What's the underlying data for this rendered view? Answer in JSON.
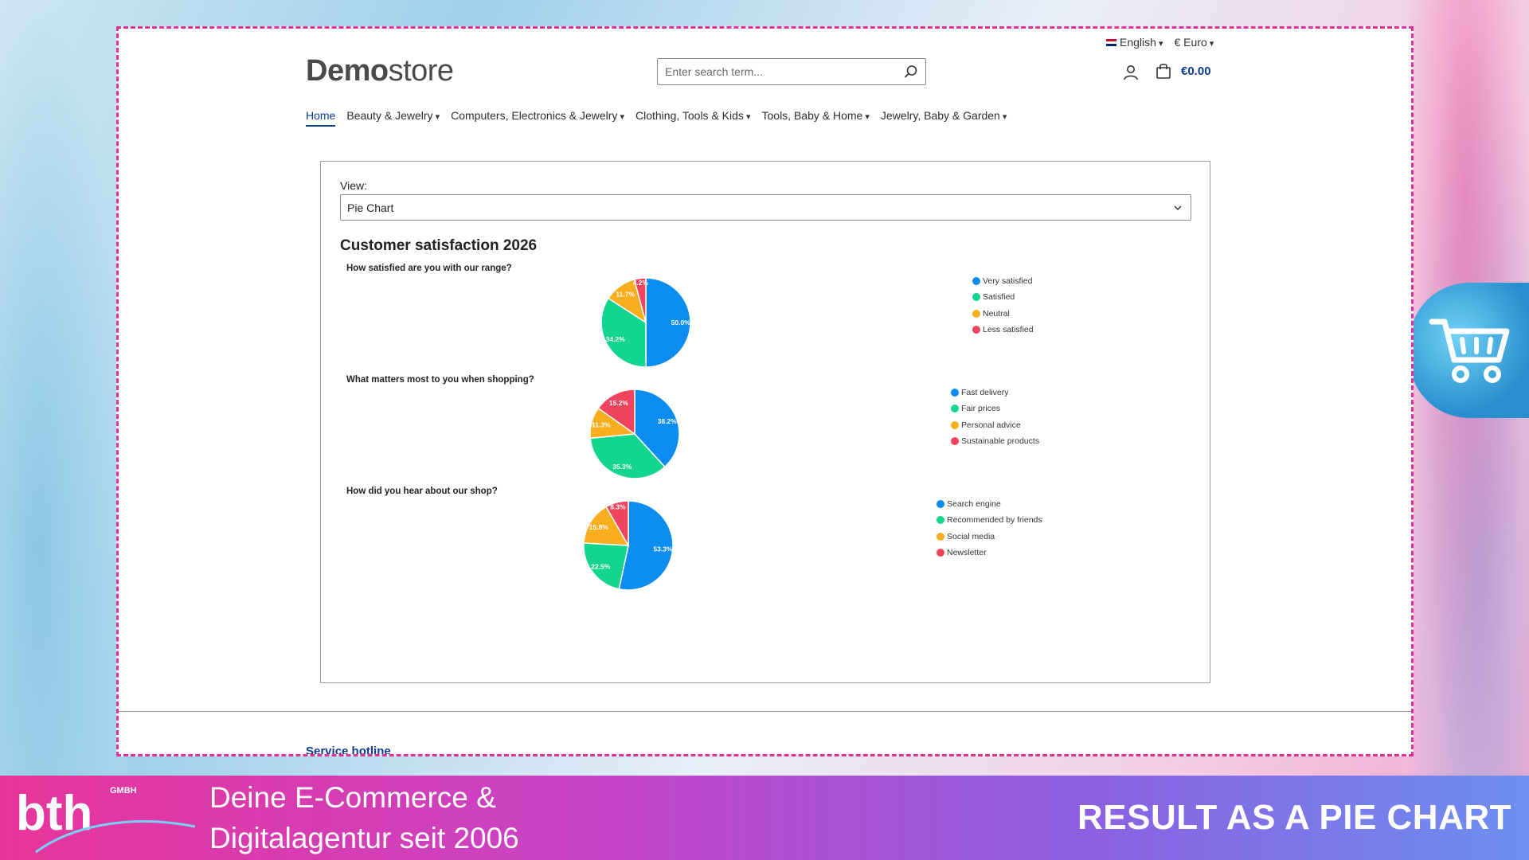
{
  "topbar": {
    "language": "English",
    "currency": "€ Euro"
  },
  "logo": {
    "bold": "Demo",
    "light": "store"
  },
  "search": {
    "placeholder": "Enter search term..."
  },
  "cart": {
    "total": "€0.00"
  },
  "nav": [
    {
      "label": "Home",
      "active": true,
      "dropdown": false
    },
    {
      "label": "Beauty & Jewelry",
      "active": false,
      "dropdown": true
    },
    {
      "label": "Computers, Electronics & Jewelry",
      "active": false,
      "dropdown": true
    },
    {
      "label": "Clothing, Tools & Kids",
      "active": false,
      "dropdown": true
    },
    {
      "label": "Tools, Baby & Home",
      "active": false,
      "dropdown": true
    },
    {
      "label": "Jewelry, Baby & Garden",
      "active": false,
      "dropdown": true
    }
  ],
  "panel": {
    "view_label": "View:",
    "view_value": "Pie Chart",
    "title": "Customer satisfaction 2026"
  },
  "colors": {
    "blue": "#0a8cf0",
    "green": "#14d58f",
    "orange": "#f8ae1d",
    "red": "#f2435e",
    "accent": "#0b3d91"
  },
  "chart_data": [
    {
      "type": "pie",
      "title": "How satisfied are you with our range?",
      "categories": [
        "Very satisfied",
        "Satisfied",
        "Neutral",
        "Less satisfied"
      ],
      "values": [
        50.0,
        34.2,
        11.7,
        4.2
      ],
      "data_labels": [
        "50.0%",
        "34.2%",
        "11.7%",
        "4.2%"
      ],
      "colors": [
        "#0a8cf0",
        "#14d58f",
        "#f8ae1d",
        "#f2435e"
      ],
      "legend_position": "right"
    },
    {
      "type": "pie",
      "title": "What matters most to you when shopping?",
      "categories": [
        "Fast delivery",
        "Fair prices",
        "Personal advice",
        "Sustainable products"
      ],
      "values": [
        38.2,
        35.3,
        11.3,
        15.2
      ],
      "data_labels": [
        "38.2%",
        "35.3%",
        "11.3%",
        "15.2%"
      ],
      "colors": [
        "#0a8cf0",
        "#14d58f",
        "#f8ae1d",
        "#f2435e"
      ],
      "legend_position": "right"
    },
    {
      "type": "pie",
      "title": "How did you hear about our shop?",
      "categories": [
        "Search engine",
        "Recommended by friends",
        "Social media",
        "Newsletter"
      ],
      "values": [
        53.3,
        22.5,
        15.8,
        8.3
      ],
      "data_labels": [
        "53.3%",
        "22.5%",
        "15.8%",
        "8.3%"
      ],
      "colors": [
        "#0a8cf0",
        "#14d58f",
        "#f8ae1d",
        "#f2435e"
      ],
      "legend_position": "right"
    }
  ],
  "footer": {
    "hotline": "Service hotline"
  },
  "banner": {
    "brand_text": "bth",
    "brand_suffix": "GMBH",
    "tagline_line1": "Deine E-Commerce &",
    "tagline_line2": "Digitalagentur seit 2006",
    "headline": "RESULT AS A PIE CHART"
  }
}
